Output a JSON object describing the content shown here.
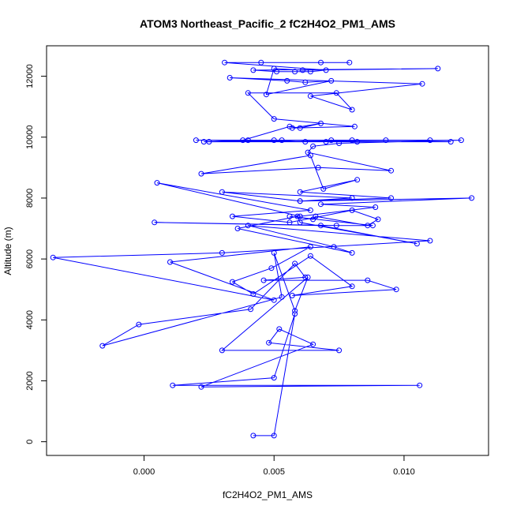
{
  "chart_data": {
    "type": "line",
    "title": "ATOM3 Northeast_Pacific_2 fC2H4O2_PM1_AMS",
    "xlabel": "fC2H4O2_PM1_AMS",
    "ylabel": "Altitude (m)",
    "xlim": [
      -0.00375,
      0.01325
    ],
    "ylim": [
      -450,
      13000
    ],
    "xticks": [
      0.0,
      0.005,
      0.01
    ],
    "xtick_labels": [
      "0.000",
      "0.005",
      "0.010"
    ],
    "yticks": [
      0,
      2000,
      4000,
      6000,
      8000,
      10000,
      12000
    ],
    "ytick_labels": [
      "0",
      "2000",
      "4000",
      "6000",
      "8000",
      "10000",
      "12000"
    ],
    "grid": false,
    "series": [
      {
        "color": "#0000ff",
        "marker": "open-circle",
        "x": [
          0.0042,
          0.005,
          0.0058,
          0.005,
          0.0011,
          0.0106,
          0.0022,
          0.0065,
          0.0052,
          0.0048,
          0.0075,
          0.003,
          0.0063,
          0.0058,
          0.005,
          0.0053,
          -0.0016,
          -0.0002,
          0.0041,
          0.0058,
          0.0062,
          0.0046,
          0.0086,
          0.0097,
          0.0057,
          0.008,
          0.0064,
          0.0042,
          0.0034,
          0.0049,
          0.0064,
          0.001,
          0.005,
          -0.0035,
          0.003,
          0.011,
          0.004,
          0.0073,
          0.008,
          0.0036,
          0.0059,
          0.006,
          0.0105,
          0.0068,
          0.0004,
          0.0074,
          0.0088,
          0.0056,
          0.0065,
          0.0066,
          0.0086,
          0.009,
          0.008,
          0.0056,
          0.0034,
          0.0064,
          0.0005,
          0.006,
          0.0089,
          0.0068,
          0.0126,
          0.006,
          0.003,
          0.008,
          0.006,
          0.0095,
          0.006,
          0.0082,
          0.0069,
          0.0064,
          0.0022,
          0.0067,
          0.0095,
          0.0063,
          0.0065,
          0.0075,
          0.0122,
          0.0023,
          0.0053,
          0.0093,
          0.002,
          0.007,
          0.0118,
          0.0025,
          0.004,
          0.008,
          0.011,
          0.005,
          0.0062,
          0.0082,
          0.0072,
          0.0038,
          0.0056,
          0.006,
          0.0068,
          0.0057,
          0.0081,
          0.005,
          0.004,
          0.0074,
          0.008,
          0.0064,
          0.0107,
          0.0033,
          0.0055,
          0.0062,
          0.0072,
          0.0047,
          0.005,
          0.0061,
          0.0113,
          0.0042,
          0.0051,
          0.0058,
          0.0064,
          0.007,
          0.0031,
          0.0045,
          0.0068,
          0.0079
        ],
        "y": [
          200,
          200,
          4200,
          2100,
          1850,
          1850,
          1800,
          3200,
          3700,
          3250,
          3000,
          3000,
          5400,
          4300,
          6200,
          4750,
          3150,
          3850,
          4350,
          5850,
          5400,
          5300,
          5300,
          5000,
          4800,
          5100,
          6100,
          4850,
          5250,
          5700,
          6400,
          5900,
          4650,
          6050,
          6200,
          6600,
          7100,
          6400,
          6200,
          7000,
          7400,
          7200,
          6500,
          7100,
          7200,
          7100,
          7100,
          7400,
          7300,
          7400,
          7100,
          7300,
          7600,
          7200,
          7400,
          7600,
          8500,
          7400,
          7700,
          7800,
          8000,
          7900,
          8200,
          8000,
          7900,
          8000,
          8200,
          8600,
          8300,
          9400,
          8800,
          9000,
          8900,
          9500,
          9700,
          9800,
          9900,
          9850,
          9900,
          9900,
          9900,
          9850,
          9850,
          9850,
          9900,
          9900,
          9900,
          9900,
          9850,
          9850,
          9900,
          9900,
          10350,
          10300,
          10450,
          10300,
          10350,
          10600,
          11450,
          11450,
          10900,
          11350,
          11750,
          11950,
          11850,
          11800,
          11850,
          11400,
          12250,
          12200,
          12250,
          12200,
          12150,
          12150,
          12150,
          12200,
          12450,
          12450,
          12450,
          12450
        ]
      }
    ]
  }
}
